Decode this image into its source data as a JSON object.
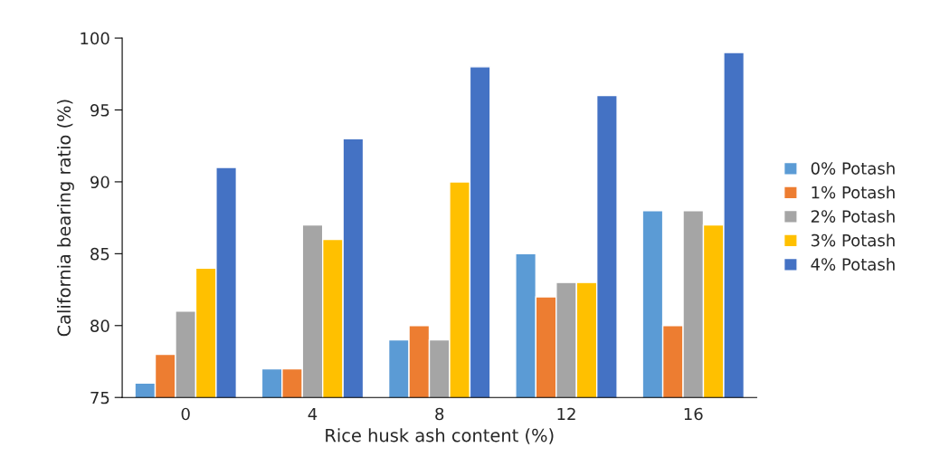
{
  "chart_data": {
    "type": "bar",
    "xlabel": "Rice husk ash content (%)",
    "ylabel": "California bearing ratio (%)",
    "categories": [
      "0",
      "4",
      "8",
      "12",
      "16"
    ],
    "series": [
      {
        "name": "0% Potash",
        "color": "#5b9bd5",
        "values": [
          76,
          77,
          79,
          85,
          88
        ]
      },
      {
        "name": "1% Potash",
        "color": "#ed7d31",
        "values": [
          78,
          77,
          80,
          82,
          80
        ]
      },
      {
        "name": "2% Potash",
        "color": "#a5a5a5",
        "values": [
          81,
          87,
          79,
          83,
          88
        ]
      },
      {
        "name": "3% Potash",
        "color": "#ffc000",
        "values": [
          84,
          86,
          90,
          83,
          87
        ]
      },
      {
        "name": "4% Potash",
        "color": "#4472c4",
        "values": [
          91,
          93,
          98,
          96,
          99
        ]
      }
    ],
    "ylim": [
      75,
      100
    ],
    "yticks": [
      75,
      80,
      85,
      90,
      95,
      100
    ],
    "grid": false,
    "legend": "right"
  }
}
